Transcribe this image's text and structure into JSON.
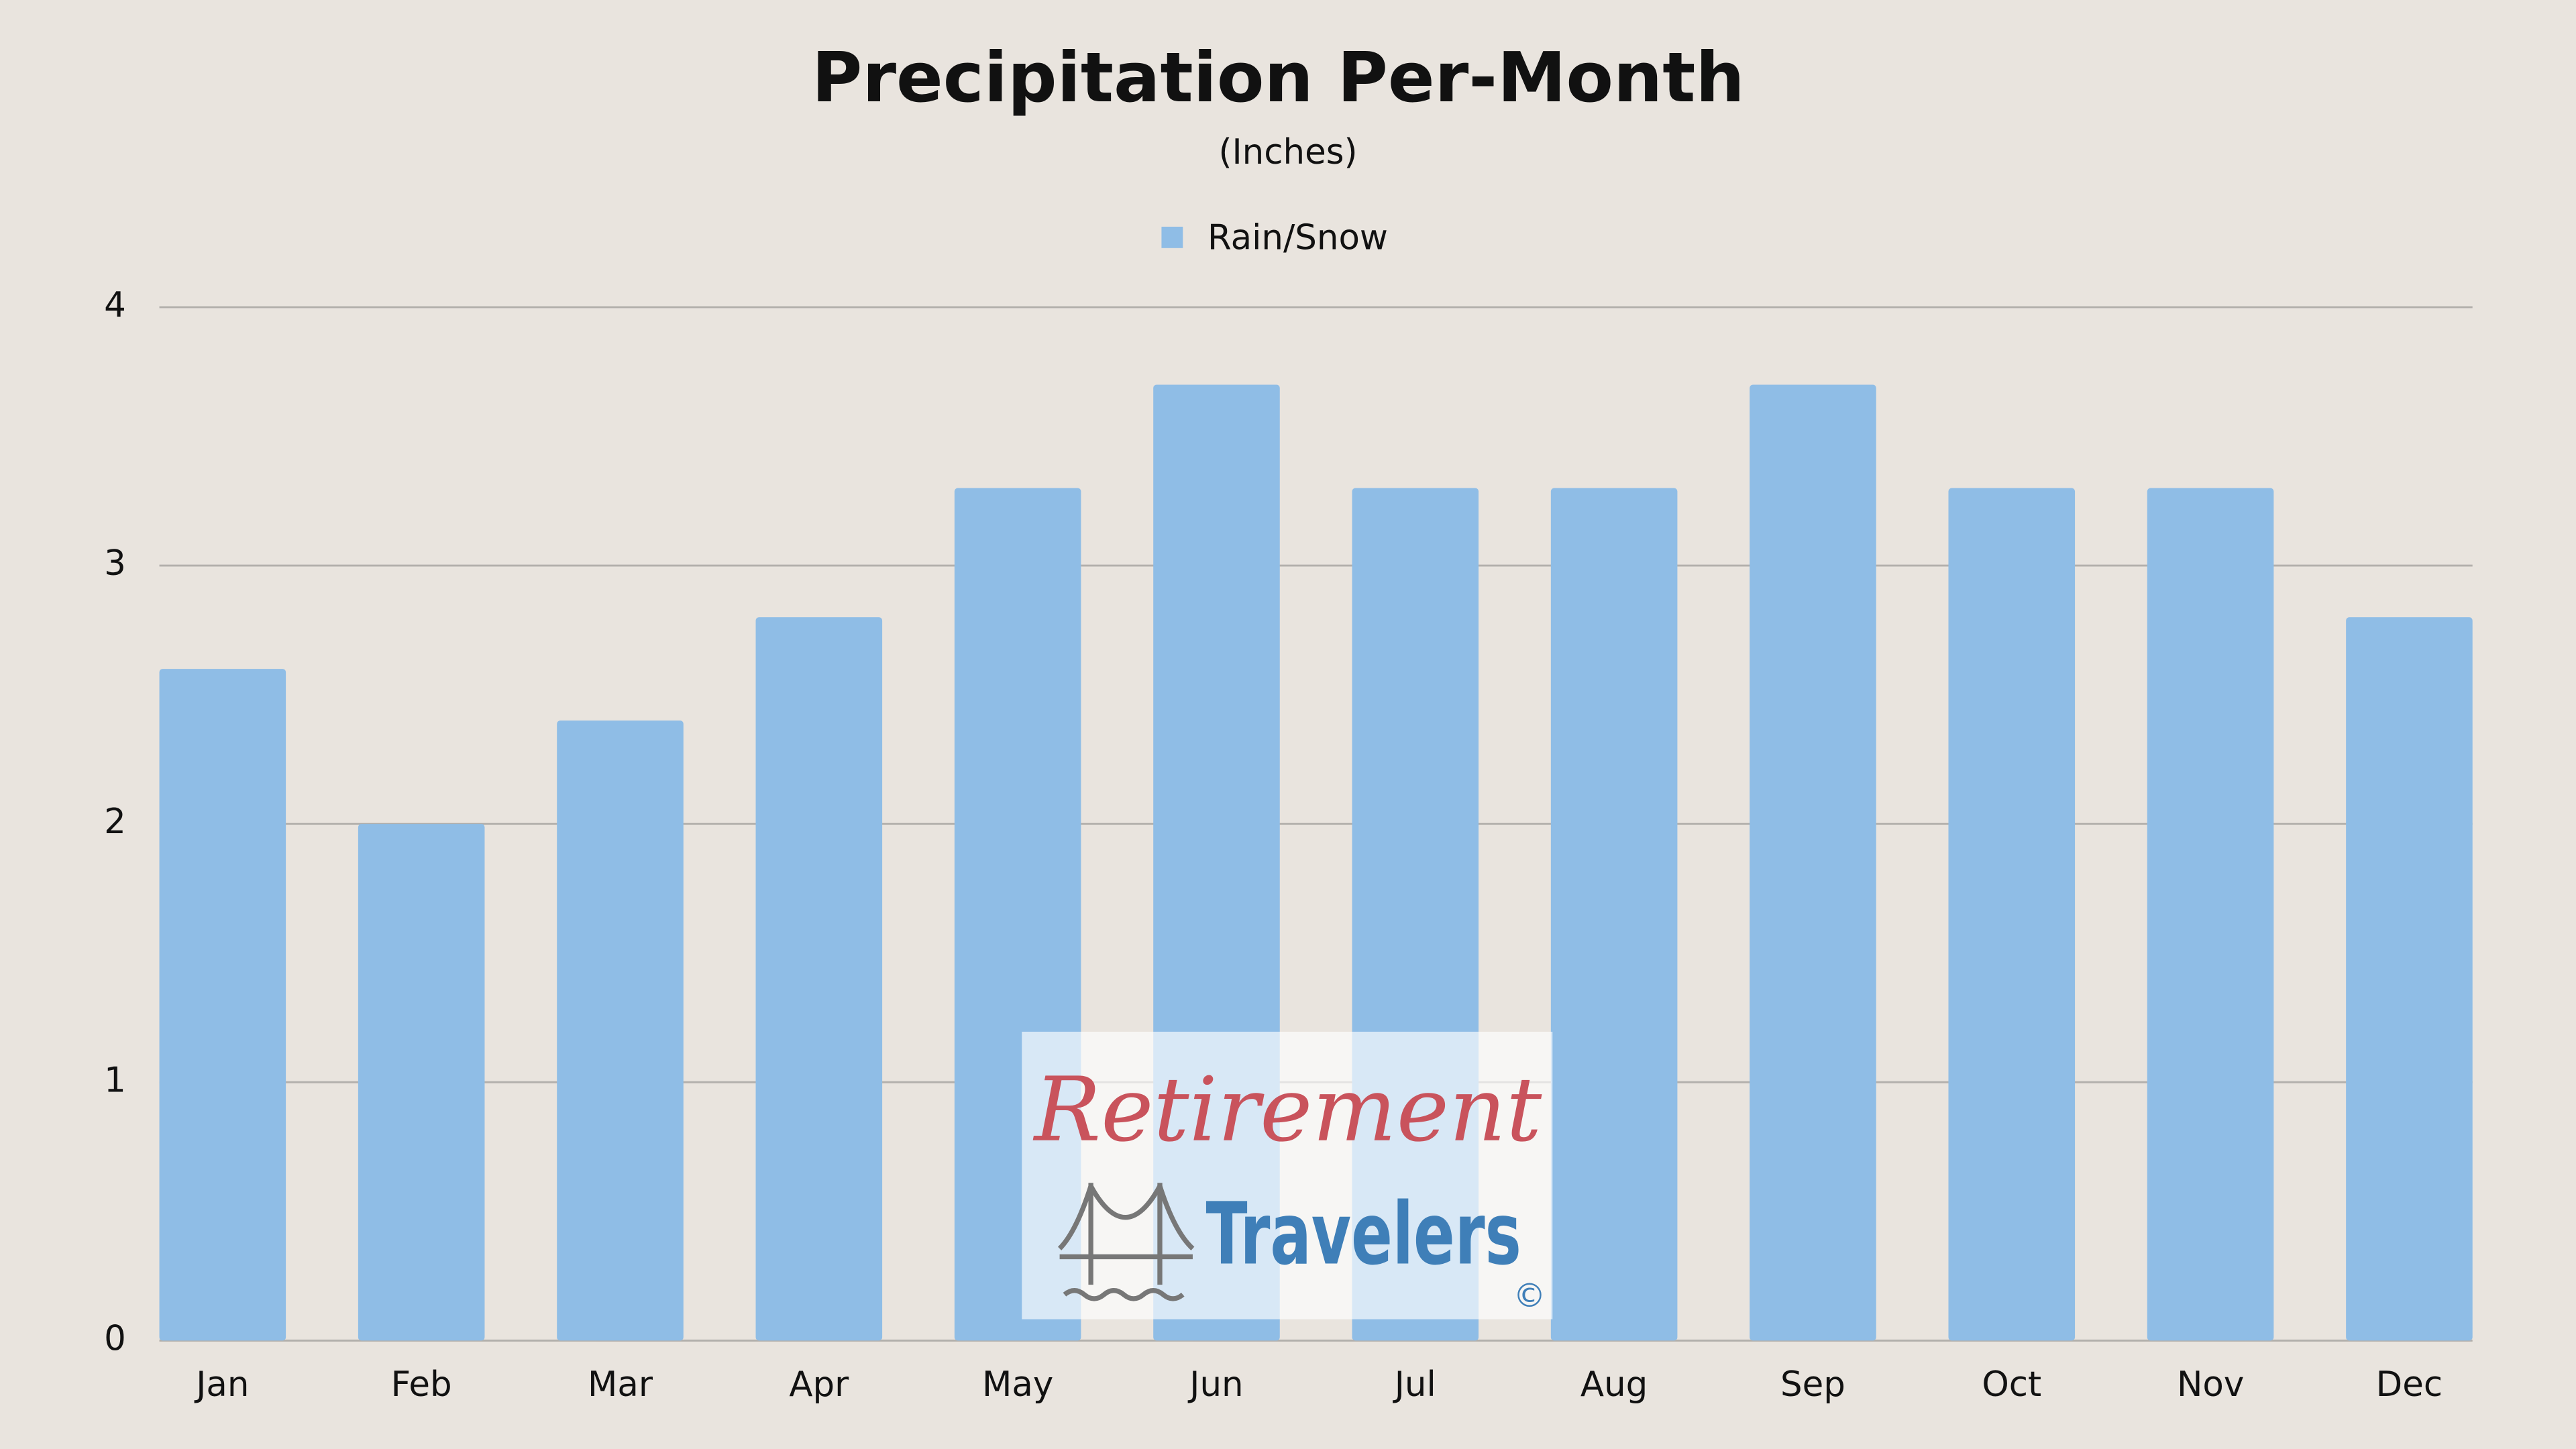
{
  "chart_data": {
    "type": "bar",
    "title": "Precipitation Per-Month",
    "subtitle": "(Inches)",
    "categories": [
      "Jan",
      "Feb",
      "Mar",
      "Apr",
      "May",
      "Jun",
      "Jul",
      "Aug",
      "Sep",
      "Oct",
      "Nov",
      "Dec"
    ],
    "series": [
      {
        "name": "Rain/Snow",
        "color": "#8fbde6",
        "values": [
          2.6,
          2.0,
          2.4,
          2.8,
          3.3,
          3.7,
          3.3,
          3.3,
          3.7,
          3.3,
          3.3,
          2.8
        ]
      }
    ],
    "ylim": [
      0,
      4
    ],
    "yticks": [
      0,
      1,
      2,
      3,
      4
    ],
    "grid": true,
    "legend": "top"
  },
  "watermark": {
    "line1": "Retirement",
    "line2": "Travelers",
    "mark": "©"
  }
}
